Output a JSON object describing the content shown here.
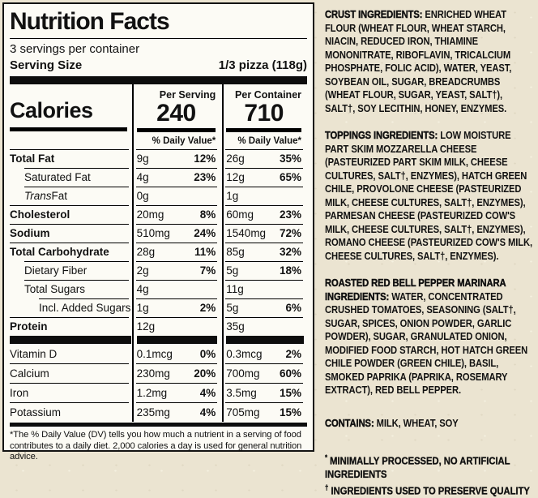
{
  "page": {
    "background_color": "#EBE4D1",
    "label_background": "#FCFBF5",
    "ink_color": "#111111"
  },
  "label": {
    "title": "Nutrition Facts",
    "servings_per_container": "3 servings per container",
    "serving_size_label": "Serving Size",
    "serving_size_value": "1/3 pizza (118g)",
    "calories": {
      "label": "Calories",
      "col1_header": "Per Serving",
      "col1_value": "240",
      "col2_header": "Per Container",
      "col2_value": "710",
      "dv_header": "% Daily Value*"
    },
    "rows": [
      {
        "label": "Total Fat",
        "bold": true,
        "indent": 0,
        "s_amt": "9g",
        "s_dv": "12%",
        "c_amt": "26g",
        "c_dv": "35%"
      },
      {
        "label": "Saturated Fat",
        "bold": false,
        "indent": 1,
        "s_amt": "4g",
        "s_dv": "23%",
        "c_amt": "12g",
        "c_dv": "65%"
      },
      {
        "label": "Trans Fat",
        "italic_word": "Trans",
        "label_rest": " Fat",
        "bold": false,
        "indent": 1,
        "s_amt": "0g",
        "s_dv": "",
        "c_amt": "1g",
        "c_dv": ""
      },
      {
        "label": "Cholesterol",
        "bold": true,
        "indent": 0,
        "s_amt": "20mg",
        "s_dv": "8%",
        "c_amt": "60mg",
        "c_dv": "23%"
      },
      {
        "label": "Sodium",
        "bold": true,
        "indent": 0,
        "s_amt": "510mg",
        "s_dv": "24%",
        "c_amt": "1540mg",
        "c_dv": "72%"
      },
      {
        "label": "Total Carbohydrate",
        "bold": true,
        "indent": 0,
        "s_amt": "28g",
        "s_dv": "11%",
        "c_amt": "85g",
        "c_dv": "32%"
      },
      {
        "label": "Dietary Fiber",
        "bold": false,
        "indent": 1,
        "s_amt": "2g",
        "s_dv": "7%",
        "c_amt": "5g",
        "c_dv": "18%"
      },
      {
        "label": "Total Sugars",
        "bold": false,
        "indent": 1,
        "s_amt": "4g",
        "s_dv": "",
        "c_amt": "11g",
        "c_dv": ""
      },
      {
        "label": "Incl. Added Sugars",
        "bold": false,
        "indent": 2,
        "s_amt": "1g",
        "s_dv": "2%",
        "c_amt": "5g",
        "c_dv": "6%"
      },
      {
        "label": "Protein",
        "bold": true,
        "indent": 0,
        "s_amt": "12g",
        "s_dv": "",
        "c_amt": "35g",
        "c_dv": ""
      }
    ],
    "vitamins": [
      {
        "label": "Vitamin D",
        "s_amt": "0.1mcg",
        "s_dv": "0%",
        "c_amt": "0.3mcg",
        "c_dv": "2%"
      },
      {
        "label": "Calcium",
        "s_amt": "230mg",
        "s_dv": "20%",
        "c_amt": "700mg",
        "c_dv": "60%"
      },
      {
        "label": "Iron",
        "s_amt": "1.2mg",
        "s_dv": "4%",
        "c_amt": "3.5mg",
        "c_dv": "15%"
      },
      {
        "label": "Potassium",
        "s_amt": "235mg",
        "s_dv": "4%",
        "c_amt": "705mg",
        "c_dv": "15%"
      }
    ],
    "footnote": "*The % Daily Value (DV) tells you how much a nutrient in a serving of food contributes to a daily diet. 2,000 calories a day is used for general nutrition advice."
  },
  "ingredients": {
    "paragraphs": [
      {
        "lead": "CRUST INGREDIENTS:",
        "text": " ENRICHED WHEAT FLOUR (WHEAT FLOUR, WHEAT STARCH, NIACIN, REDUCED IRON, THIAMINE MONONITRATE, RIBOFLAVIN, TRICALCIUM PHOSPHATE, FOLIC ACID), WATER, YEAST, SOYBEAN OIL, SUGAR, BREADCRUMBS (WHEAT FLOUR, SUGAR, YEAST, SALT†), SALT†, SOY LECITHIN, HONEY, ENZYMES."
      },
      {
        "lead": "TOPPINGS INGREDIENTS:",
        "text": " LOW MOISTURE PART SKIM MOZZARELLA CHEESE (PASTEURIZED PART SKIM MILK, CHEESE CULTURES, SALT†, ENZYMES), HATCH GREEN CHILE, PROVOLONE CHEESE (PASTEURIZED MILK, CHEESE CULTURES, SALT†, ENZYMES), PARMESAN CHEESE (PASTEURIZED COW'S MILK, CHEESE CULTURES, SALT†, ENZYMES), ROMANO CHEESE (PASTEURIZED COW'S MILK, CHEESE CULTURES, SALT†, ENZYMES)."
      },
      {
        "lead": "ROASTED RED BELL PEPPER MARINARA INGREDIENTS:",
        "text": " WATER, CONCENTRATED CRUSHED TOMATOES, SEASONING (SALT†, SUGAR, SPICES, ONION POWDER, GARLIC POWDER), SUGAR, GRANULATED ONION, MODIFIED FOOD STARCH, HOT HATCH GREEN CHILE POWDER (GREEN CHILE), BASIL, SMOKED PAPRIKA (PAPRIKA, ROSEMARY EXTRACT), RED BELL PEPPER."
      },
      {
        "lead": "CONTAINS:",
        "text": " MILK, WHEAT, SOY",
        "contains": true
      }
    ],
    "notes": [
      {
        "sym": "*",
        "text": " MINIMALLY PROCESSED, NO ARTIFICIAL INGREDIENTS"
      },
      {
        "sym": "†",
        "text": " INGREDIENTS USED TO PRESERVE QUALITY"
      }
    ]
  }
}
